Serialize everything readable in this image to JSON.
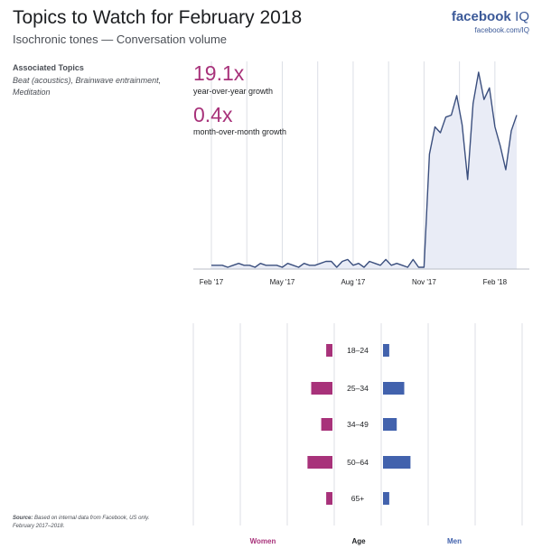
{
  "header": {
    "title": "Topics to Watch for February 2018",
    "subtitle": "Isochronic tones — Conversation volume",
    "brand_name": "facebook",
    "brand_suffix": "IQ",
    "brand_url": "facebook.com/IQ"
  },
  "associated": {
    "heading": "Associated Topics",
    "topics": "Beat (acoustics), Brainwave entrainment, Meditation"
  },
  "stats": {
    "yoy_value": "19.1x",
    "yoy_label": "year-over-year growth",
    "mom_value": "0.4x",
    "mom_label": "month-over-month growth"
  },
  "source": {
    "label": "Source:",
    "text": "Based on internal data from Facebook, US only.",
    "period": "February 2017–2018."
  },
  "colors": {
    "line": "#3b4f7e",
    "area": "#e9ecf6",
    "women": "#a8327a",
    "men": "#4262ad",
    "grid": "#dcdfe6"
  },
  "chart_data": [
    {
      "type": "area",
      "title": "Isochronic tones — Conversation volume",
      "x_tick_labels": [
        "Feb '17",
        "May '17",
        "Aug '17",
        "Nov '17",
        "Feb '18"
      ],
      "x_tick_indices": [
        0,
        13,
        26,
        39,
        52
      ],
      "ylim": [
        0,
        100
      ],
      "values": [
        1,
        1,
        1,
        0,
        1,
        2,
        1,
        1,
        0,
        2,
        1,
        1,
        1,
        0,
        2,
        1,
        0,
        2,
        1,
        1,
        2,
        3,
        3,
        0,
        3,
        4,
        1,
        2,
        0,
        3,
        2,
        1,
        4,
        1,
        2,
        1,
        0,
        4,
        0,
        0,
        58,
        72,
        69,
        77,
        78,
        88,
        73,
        45,
        84,
        100,
        86,
        92,
        72,
        62,
        50,
        70,
        78
      ]
    },
    {
      "type": "bar",
      "title": "Age and gender",
      "categories": [
        "18–24",
        "25–34",
        "34–49",
        "50–64",
        "65+"
      ],
      "series": [
        {
          "name": "Women",
          "values": [
            5,
            17,
            9,
            20,
            5
          ]
        },
        {
          "name": "Men",
          "values": [
            5,
            17,
            11,
            22,
            5
          ]
        }
      ],
      "xlabel_left": "Women",
      "xlabel_center": "Age",
      "xlabel_right": "Men"
    }
  ]
}
